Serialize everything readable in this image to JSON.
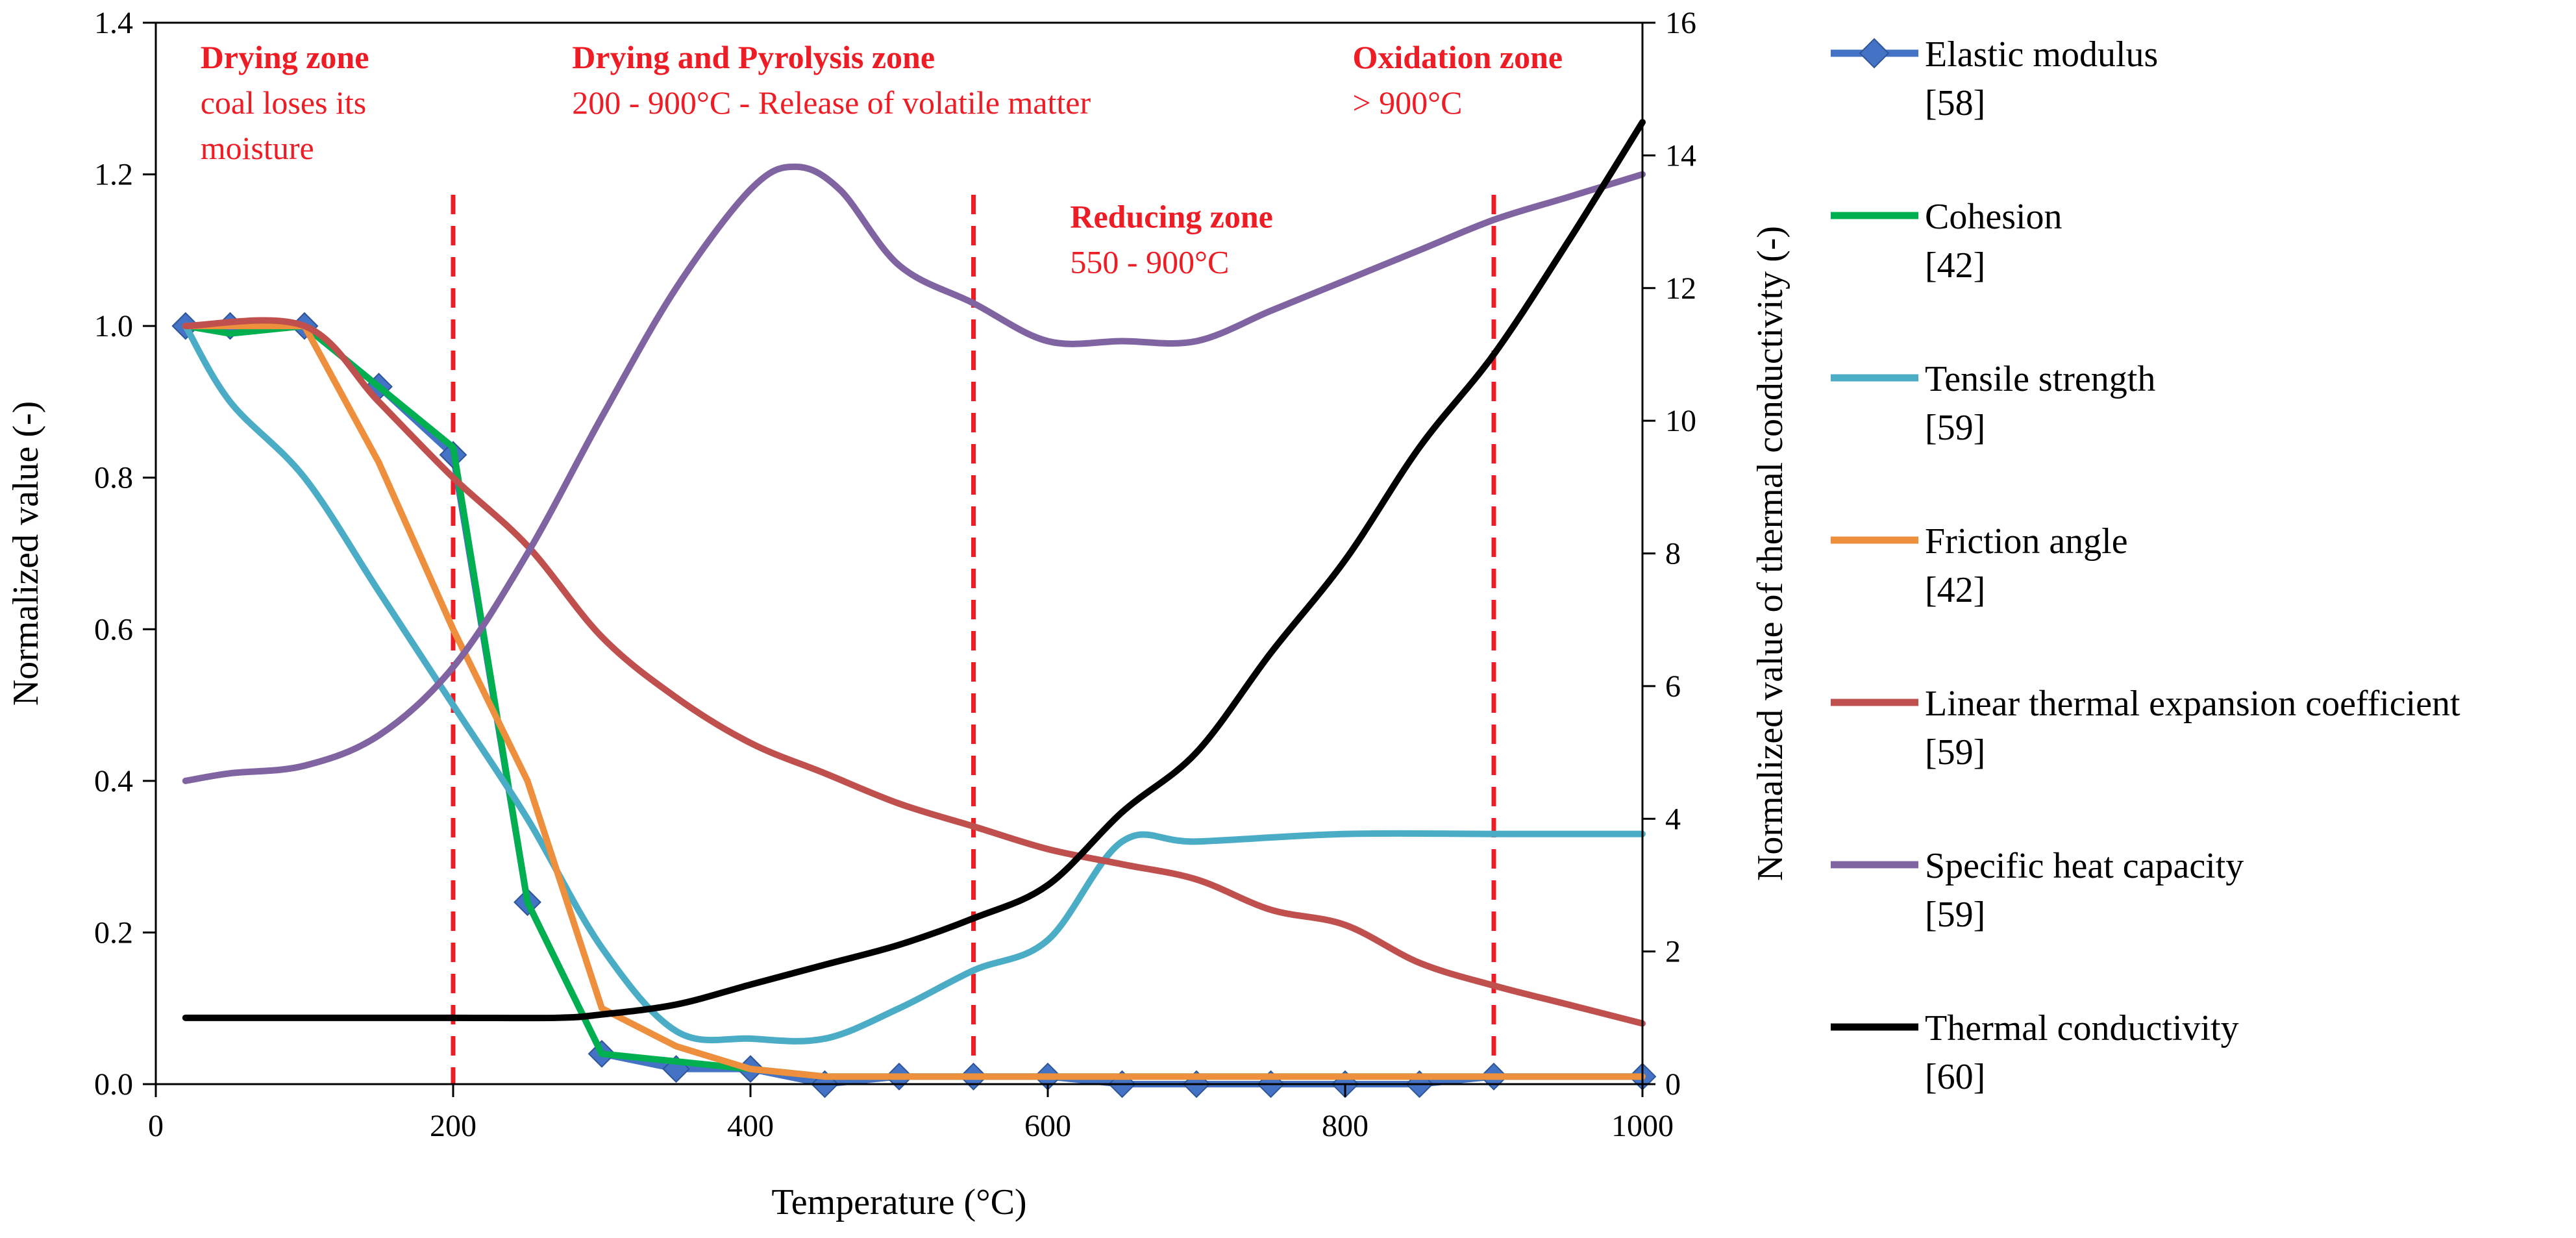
{
  "chart_data": {
    "type": "line",
    "title": "",
    "xlabel": "Temperature (°C)",
    "ylabel": "Normalized value (-)",
    "y2label": "Normalized value  of thermal conductivity (-)",
    "xlim": [
      0,
      1000
    ],
    "ylim": [
      0,
      1.4
    ],
    "y2lim": [
      0,
      16
    ],
    "x_ticks": [
      "0",
      "200",
      "400",
      "600",
      "800",
      "1000"
    ],
    "y_ticks": [
      "0.0",
      "0.2",
      "0.4",
      "0.6",
      "0.8",
      "1.0",
      "1.2",
      "1.4"
    ],
    "y2_ticks": [
      "0",
      "2",
      "4",
      "6",
      "8",
      "10",
      "12",
      "14",
      "16"
    ],
    "grid": false,
    "legend_position": "right",
    "zone_boundaries": [
      200,
      550,
      900
    ],
    "annotations": [
      {
        "id": "drying",
        "title": "Drying zone",
        "lines": [
          "coal loses its",
          "moisture"
        ],
        "x": 30,
        "y": 1.34
      },
      {
        "id": "pyrolysis",
        "title": "Drying and Pyrolysis zone",
        "lines": [
          "200 - 900°C - Release of volatile matter"
        ],
        "x": 280,
        "y": 1.34
      },
      {
        "id": "oxidation",
        "title": "Oxidation zone",
        "lines": [
          "> 900°C"
        ],
        "x": 805,
        "y": 1.34
      },
      {
        "id": "reducing",
        "title": "Reducing zone",
        "lines": [
          "550 - 900°C"
        ],
        "x": 615,
        "y": 1.13
      }
    ],
    "series": [
      {
        "name": "Elastic modulus",
        "ref": "[58]",
        "color": "#4472c4",
        "axis": "left",
        "marker": "diamond",
        "smooth": false,
        "x": [
          20,
          50,
          100,
          150,
          200,
          250,
          300,
          350,
          400,
          450,
          500,
          550,
          600,
          650,
          700,
          750,
          800,
          850,
          900,
          1000
        ],
        "y": [
          1.0,
          1.0,
          1.0,
          0.92,
          0.83,
          0.24,
          0.04,
          0.02,
          0.02,
          0.0,
          0.01,
          0.01,
          0.01,
          0.0,
          0.0,
          0.0,
          0.0,
          0.0,
          0.01,
          0.01
        ]
      },
      {
        "name": "Cohesion",
        "ref": "[42]",
        "color": "#00b050",
        "axis": "left",
        "marker": "none",
        "smooth": false,
        "x": [
          20,
          50,
          100,
          150,
          200,
          250,
          300,
          350,
          400,
          450,
          500,
          550,
          600,
          650,
          700,
          750,
          800,
          850,
          900,
          1000
        ],
        "y": [
          1.0,
          0.99,
          1.0,
          0.92,
          0.84,
          0.24,
          0.04,
          0.03,
          0.02,
          0.01,
          0.01,
          0.01,
          0.01,
          0.01,
          0.01,
          0.01,
          0.01,
          0.01,
          0.01,
          0.01
        ]
      },
      {
        "name": "Tensile strength",
        "ref": "[59]",
        "color": "#4bacc6",
        "axis": "left",
        "marker": "none",
        "smooth": true,
        "x": [
          20,
          50,
          100,
          150,
          200,
          250,
          300,
          350,
          400,
          450,
          500,
          550,
          600,
          650,
          700,
          800,
          900,
          1000
        ],
        "y": [
          1.0,
          0.9,
          0.8,
          0.65,
          0.5,
          0.35,
          0.18,
          0.07,
          0.06,
          0.06,
          0.1,
          0.15,
          0.19,
          0.32,
          0.32,
          0.33,
          0.33,
          0.33
        ]
      },
      {
        "name": "Friction angle",
        "ref": "[42]",
        "color": "#ed8f3c",
        "axis": "left",
        "marker": "none",
        "smooth": false,
        "x": [
          20,
          100,
          150,
          200,
          250,
          300,
          350,
          400,
          450,
          500,
          1000
        ],
        "y": [
          1.0,
          1.0,
          0.82,
          0.6,
          0.4,
          0.1,
          0.05,
          0.02,
          0.01,
          0.01,
          0.01
        ]
      },
      {
        "name": "Linear thermal expansion coefficient",
        "ref": "[59]",
        "color": "#c0504d",
        "axis": "left",
        "marker": "none",
        "smooth": true,
        "x": [
          20,
          100,
          150,
          200,
          250,
          300,
          350,
          400,
          450,
          500,
          550,
          600,
          650,
          700,
          750,
          800,
          850,
          900,
          950,
          1000
        ],
        "y": [
          1.0,
          1.0,
          0.9,
          0.8,
          0.71,
          0.59,
          0.51,
          0.45,
          0.41,
          0.37,
          0.34,
          0.31,
          0.29,
          0.27,
          0.23,
          0.21,
          0.16,
          0.13,
          0.105,
          0.08
        ]
      },
      {
        "name": "Specific heat capacity",
        "ref": "[59]",
        "color": "#8064a2",
        "axis": "left",
        "marker": "none",
        "smooth": true,
        "x": [
          20,
          50,
          100,
          150,
          200,
          250,
          300,
          350,
          400,
          430,
          460,
          500,
          550,
          600,
          650,
          700,
          750,
          800,
          850,
          900,
          950,
          1000
        ],
        "y": [
          0.4,
          0.41,
          0.42,
          0.46,
          0.55,
          0.7,
          0.88,
          1.05,
          1.18,
          1.21,
          1.18,
          1.08,
          1.03,
          0.98,
          0.98,
          0.98,
          1.02,
          1.06,
          1.1,
          1.14,
          1.17,
          1.2
        ]
      },
      {
        "name": "Thermal conductivity",
        "ref": "[60]",
        "color": "#000000",
        "axis": "right",
        "marker": "none",
        "smooth": true,
        "x": [
          20,
          100,
          200,
          270,
          300,
          350,
          400,
          450,
          500,
          550,
          600,
          650,
          700,
          750,
          800,
          850,
          900,
          950,
          1000
        ],
        "y": [
          1.0,
          1.0,
          1.0,
          1.0,
          1.05,
          1.2,
          1.5,
          1.8,
          2.1,
          2.5,
          3.0,
          4.1,
          5.0,
          6.5,
          7.9,
          9.6,
          11.0,
          12.7,
          14.5
        ]
      }
    ]
  }
}
